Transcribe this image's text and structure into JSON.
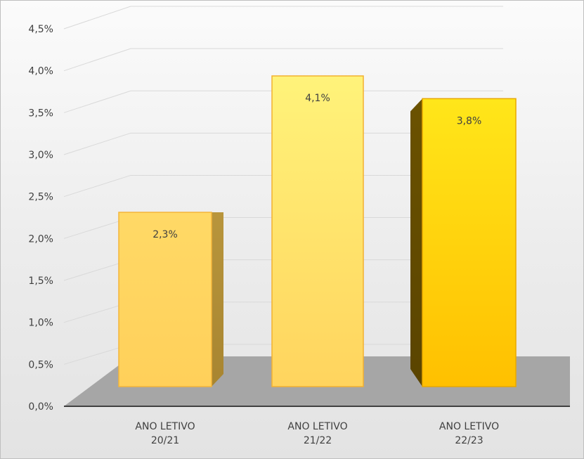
{
  "chart_data": {
    "type": "bar",
    "title": "",
    "xlabel": "",
    "ylabel": "",
    "ylim": [
      0,
      4.5
    ],
    "y_ticks": [
      "0,0%",
      "0,5%",
      "1,0%",
      "1,5%",
      "2,0%",
      "2,5%",
      "3,0%",
      "3,5%",
      "4,0%",
      "4,5%"
    ],
    "categories": [
      [
        "ANO LETIVO",
        "20/21"
      ],
      [
        "ANO LETIVO",
        "21/22"
      ],
      [
        "ANO LETIVO",
        "22/23"
      ]
    ],
    "values": [
      2.3,
      4.1,
      3.8
    ],
    "data_labels": [
      "2,3%",
      "4,1%",
      "3,8%"
    ],
    "grid": true,
    "legend": "none",
    "style": "3d-column",
    "colors": {
      "bar_1": "#ffd966",
      "bar_2": "#ffe880",
      "bar_3": "#ffcc00",
      "floor": "#a6a6a6",
      "grid": "#d9d9d9",
      "axis": "#404040",
      "text": "#404040"
    }
  }
}
